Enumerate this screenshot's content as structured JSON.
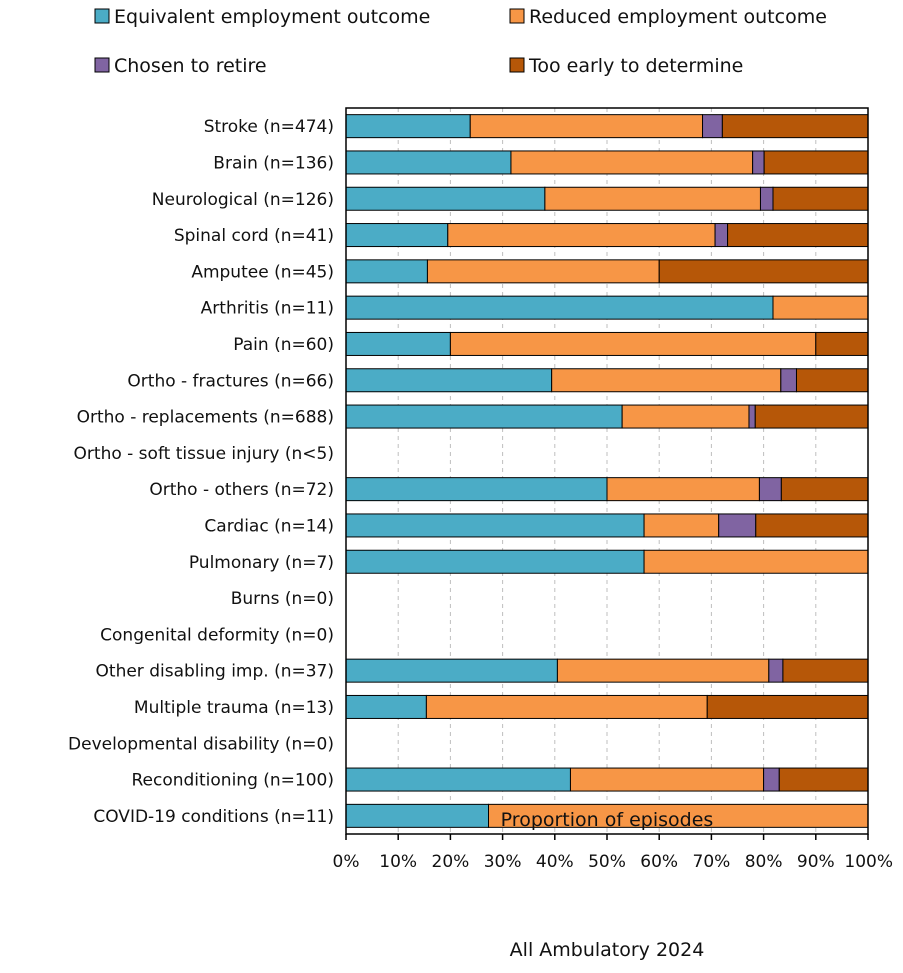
{
  "chart_data": {
    "type": "bar",
    "stacked": true,
    "orientation": "horizontal",
    "categories": [
      "Stroke (n=474)",
      "Brain (n=136)",
      "Neurological (n=126)",
      "Spinal cord (n=41)",
      "Amputee (n=45)",
      "Arthritis (n=11)",
      "Pain (n=60)",
      "Ortho - fractures (n=66)",
      "Ortho - replacements (n=688)",
      "Ortho - soft tissue injury (n<5)",
      "Ortho - others (n=72)",
      "Cardiac (n=14)",
      "Pulmonary (n=7)",
      "Burns (n=0)",
      "Congenital deformity (n=0)",
      "Other disabling imp. (n=37)",
      "Multiple trauma (n=13)",
      "Developmental disability (n=0)",
      "Reconditioning (n=100)",
      "COVID-19 conditions (n=11)"
    ],
    "series": [
      {
        "name": "Equivalent employment outcome",
        "color": "#4bacc6",
        "values": [
          23.8,
          31.6,
          38.1,
          19.5,
          15.6,
          81.8,
          20.0,
          39.4,
          52.9,
          0,
          50.0,
          57.1,
          57.1,
          0,
          0,
          40.5,
          15.4,
          0,
          43.0,
          27.3
        ]
      },
      {
        "name": "Reduced employment outcome",
        "color": "#f79646",
        "values": [
          44.5,
          46.3,
          41.3,
          51.2,
          44.4,
          18.2,
          70.0,
          43.9,
          24.3,
          0,
          29.2,
          14.3,
          42.9,
          0,
          0,
          40.5,
          53.8,
          0,
          37.0,
          72.7
        ]
      },
      {
        "name": "Chosen to retire",
        "color": "#8064a2",
        "values": [
          3.8,
          2.2,
          2.4,
          2.4,
          0,
          0,
          0,
          3.0,
          1.2,
          0,
          4.2,
          7.1,
          0,
          0,
          0,
          2.7,
          0,
          0,
          3.0,
          0
        ]
      },
      {
        "name": "Too early to determine",
        "color": "#b65708",
        "values": [
          27.9,
          19.9,
          18.2,
          26.9,
          40.0,
          0,
          10.0,
          13.7,
          21.6,
          0,
          16.6,
          21.5,
          0,
          0,
          0,
          16.3,
          30.8,
          0,
          17.0,
          0
        ]
      }
    ],
    "xlim": [
      0,
      100
    ],
    "xticks": [
      "0%",
      "10%",
      "20%",
      "30%",
      "40%",
      "50%",
      "60%",
      "70%",
      "80%",
      "90%",
      "100%"
    ],
    "xlabel": "Proportion of episodes",
    "footer": "All Ambulatory 2024",
    "legend_position": "top",
    "grid": "vertical dashed"
  }
}
